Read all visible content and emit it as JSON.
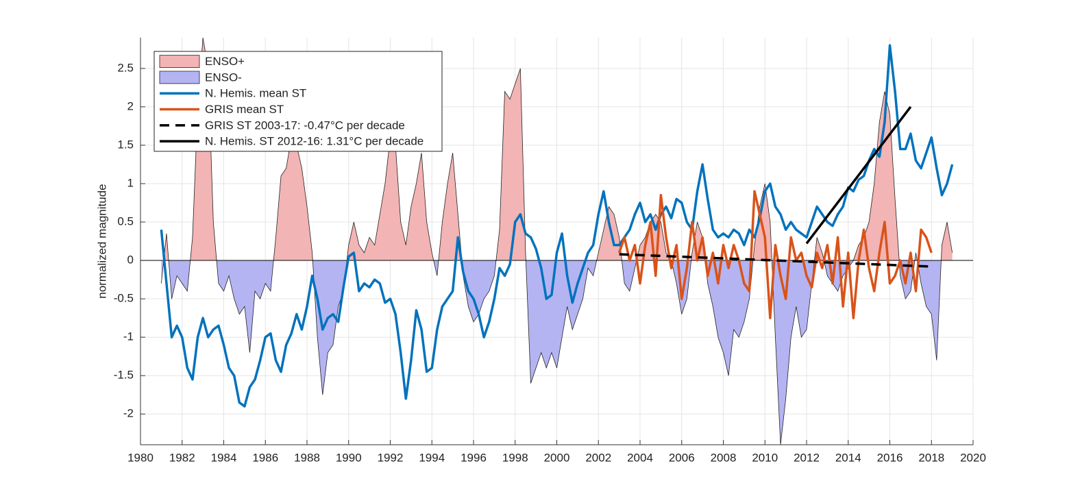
{
  "chart_data": {
    "type": "line",
    "ylabel": "normalized magnitude",
    "xlim": [
      1980,
      2020
    ],
    "xticks": [
      1980,
      1982,
      1984,
      1986,
      1988,
      1990,
      1992,
      1994,
      1996,
      1998,
      2000,
      2002,
      2004,
      2006,
      2008,
      2010,
      2012,
      2014,
      2016,
      2018,
      2020
    ],
    "ylim": [
      -2.4,
      2.9
    ],
    "yticks": [
      -2,
      -1.5,
      -1,
      -0.5,
      0,
      0.5,
      1,
      1.5,
      2,
      2.5
    ],
    "grid": true,
    "legend": "northwest",
    "x": [
      1981,
      1981.25,
      1981.5,
      1981.75,
      1982,
      1982.25,
      1982.5,
      1982.75,
      1983,
      1983.25,
      1983.5,
      1983.75,
      1984,
      1984.25,
      1984.5,
      1984.75,
      1985,
      1985.25,
      1985.5,
      1985.75,
      1986,
      1986.25,
      1986.5,
      1986.75,
      1987,
      1987.25,
      1987.5,
      1987.75,
      1988,
      1988.25,
      1988.5,
      1988.75,
      1989,
      1989.25,
      1989.5,
      1989.75,
      1990,
      1990.25,
      1990.5,
      1990.75,
      1991,
      1991.25,
      1991.5,
      1991.75,
      1992,
      1992.25,
      1992.5,
      1992.75,
      1993,
      1993.25,
      1993.5,
      1993.75,
      1994,
      1994.25,
      1994.5,
      1994.75,
      1995,
      1995.25,
      1995.5,
      1995.75,
      1996,
      1996.25,
      1996.5,
      1996.75,
      1997,
      1997.25,
      1997.5,
      1997.75,
      1998,
      1998.25,
      1998.5,
      1998.75,
      1999,
      1999.25,
      1999.5,
      1999.75,
      2000,
      2000.25,
      2000.5,
      2000.75,
      2001,
      2001.25,
      2001.5,
      2001.75,
      2002,
      2002.25,
      2002.5,
      2002.75,
      2003,
      2003.25,
      2003.5,
      2003.75,
      2004,
      2004.25,
      2004.5,
      2004.75,
      2005,
      2005.25,
      2005.5,
      2005.75,
      2006,
      2006.25,
      2006.5,
      2006.75,
      2007,
      2007.25,
      2007.5,
      2007.75,
      2008,
      2008.25,
      2008.5,
      2008.75,
      2009,
      2009.25,
      2009.5,
      2009.75,
      2010,
      2010.25,
      2010.5,
      2010.75,
      2011,
      2011.25,
      2011.5,
      2011.75,
      2012,
      2012.25,
      2012.5,
      2012.75,
      2013,
      2013.25,
      2013.5,
      2013.75,
      2014,
      2014.25,
      2014.5,
      2014.75,
      2015,
      2015.25,
      2015.5,
      2015.75,
      2016,
      2016.25,
      2016.5,
      2016.75,
      2017,
      2017.25,
      2017.5,
      2017.75,
      2018,
      2018.25,
      2018.5,
      2018.75,
      2019
    ],
    "area": {
      "pos_name": "ENSO+",
      "pos_color": "#f2b4b4",
      "neg_name": "ENSO-",
      "neg_color": "#b4b4f2",
      "values": [
        -0.3,
        0.35,
        -0.5,
        -0.2,
        -0.3,
        -0.4,
        0.3,
        2.0,
        2.9,
        2.5,
        0.5,
        -0.3,
        -0.4,
        -0.2,
        -0.5,
        -0.7,
        -0.6,
        -1.2,
        -0.4,
        -0.5,
        -0.3,
        -0.4,
        0.3,
        1.1,
        1.2,
        1.6,
        1.5,
        1.2,
        0.7,
        0.1,
        -1.0,
        -1.75,
        -1.2,
        -1.1,
        -0.6,
        -0.4,
        0.2,
        0.5,
        0.2,
        0.1,
        0.3,
        0.2,
        0.6,
        1.0,
        1.6,
        1.5,
        0.5,
        0.2,
        0.7,
        1.0,
        1.4,
        0.5,
        0.1,
        -0.2,
        0.5,
        1.0,
        1.4,
        0.6,
        -0.2,
        -0.6,
        -0.8,
        -0.7,
        -0.5,
        -0.4,
        -0.2,
        0.4,
        2.2,
        2.1,
        2.3,
        2.5,
        0.1,
        -1.6,
        -1.4,
        -1.2,
        -1.4,
        -1.2,
        -1.4,
        -1.0,
        -0.6,
        -0.9,
        -0.7,
        -0.5,
        -0.1,
        -0.2,
        0.1,
        0.4,
        0.7,
        0.6,
        0.3,
        -0.3,
        -0.4,
        -0.1,
        0.2,
        0.3,
        0.5,
        0.6,
        0.5,
        0.1,
        0.0,
        -0.3,
        -0.7,
        -0.5,
        0.1,
        0.5,
        0.3,
        -0.3,
        -0.6,
        -1.0,
        -1.2,
        -1.5,
        -0.9,
        -1.0,
        -0.8,
        -0.5,
        0.2,
        0.7,
        1.0,
        0.5,
        -1.0,
        -2.4,
        -1.8,
        -1.0,
        -0.6,
        -1.0,
        -0.9,
        -0.3,
        0.3,
        0.1,
        -0.2,
        -0.3,
        -0.4,
        -0.2,
        -0.1,
        0.0,
        0.2,
        0.3,
        0.5,
        1.0,
        1.8,
        2.2,
        1.9,
        0.8,
        -0.2,
        -0.5,
        -0.4,
        0.1,
        -0.3,
        -0.6,
        -0.7,
        -1.3,
        0.2,
        0.5,
        0.1
      ]
    },
    "series": [
      {
        "name": "N. Hemis. mean ST",
        "color": "#0072bd",
        "linestyle": "solid",
        "values": [
          0.4,
          -0.3,
          -1.0,
          -0.85,
          -1.0,
          -1.4,
          -1.55,
          -1.0,
          -0.75,
          -1.0,
          -0.9,
          -0.85,
          -1.1,
          -1.4,
          -1.5,
          -1.85,
          -1.9,
          -1.65,
          -1.55,
          -1.3,
          -1.0,
          -0.95,
          -1.3,
          -1.45,
          -1.1,
          -0.95,
          -0.7,
          -0.9,
          -0.6,
          -0.2,
          -0.5,
          -0.9,
          -0.75,
          -0.7,
          -0.8,
          -0.35,
          0.05,
          0.1,
          -0.4,
          -0.3,
          -0.35,
          -0.25,
          -0.3,
          -0.55,
          -0.5,
          -0.7,
          -1.2,
          -1.8,
          -1.3,
          -0.65,
          -0.9,
          -1.45,
          -1.4,
          -0.9,
          -0.6,
          -0.5,
          -0.4,
          0.3,
          -0.15,
          -0.4,
          -0.5,
          -0.7,
          -1.0,
          -0.8,
          -0.5,
          -0.1,
          -0.2,
          -0.05,
          0.5,
          0.6,
          0.35,
          0.3,
          0.15,
          -0.1,
          -0.5,
          -0.45,
          0.1,
          0.35,
          -0.2,
          -0.55,
          -0.3,
          -0.1,
          0.1,
          0.2,
          0.6,
          0.9,
          0.5,
          0.2,
          0.2,
          0.3,
          0.4,
          0.6,
          0.75,
          0.5,
          0.6,
          0.4,
          0.6,
          0.7,
          0.55,
          0.8,
          0.75,
          0.5,
          0.4,
          0.9,
          1.25,
          0.8,
          0.4,
          0.3,
          0.35,
          0.3,
          0.4,
          0.35,
          0.2,
          0.4,
          0.3,
          0.55,
          0.9,
          1.0,
          0.7,
          0.6,
          0.4,
          0.5,
          0.4,
          0.35,
          0.3,
          0.5,
          0.7,
          0.6,
          0.5,
          0.45,
          0.6,
          0.7,
          0.95,
          0.9,
          1.05,
          1.1,
          1.3,
          1.45,
          1.35,
          1.8,
          2.8,
          2.2,
          1.45,
          1.45,
          1.65,
          1.3,
          1.2,
          1.4,
          1.6,
          1.2,
          0.85,
          1.0,
          1.25
        ]
      },
      {
        "name": "GRIS mean ST",
        "color": "#d95319",
        "linestyle": "solid",
        "x": [
          2003,
          2003.25,
          2003.5,
          2003.75,
          2004,
          2004.25,
          2004.5,
          2004.75,
          2005,
          2005.25,
          2005.5,
          2005.75,
          2006,
          2006.25,
          2006.5,
          2006.75,
          2007,
          2007.25,
          2007.5,
          2007.75,
          2008,
          2008.25,
          2008.5,
          2008.75,
          2009,
          2009.25,
          2009.5,
          2009.75,
          2010,
          2010.25,
          2010.5,
          2010.75,
          2011,
          2011.25,
          2011.5,
          2011.75,
          2012,
          2012.25,
          2012.5,
          2012.75,
          2013,
          2013.25,
          2013.5,
          2013.75,
          2014,
          2014.25,
          2014.5,
          2014.75,
          2015,
          2015.25,
          2015.5,
          2015.75,
          2016,
          2016.25,
          2016.5,
          2016.75,
          2017,
          2017.25,
          2017.5,
          2017.75,
          2018
        ],
        "values": [
          0.1,
          0.3,
          0.0,
          0.2,
          -0.3,
          0.2,
          0.5,
          -0.2,
          0.85,
          0.3,
          -0.1,
          0.2,
          -0.5,
          -0.1,
          0.5,
          0.0,
          0.3,
          -0.2,
          0.1,
          -0.3,
          0.2,
          -0.1,
          0.2,
          0.0,
          -0.3,
          -0.4,
          0.9,
          0.6,
          0.3,
          -0.75,
          0.2,
          -0.2,
          -0.5,
          0.3,
          0.0,
          0.1,
          -0.2,
          -0.35,
          0.1,
          -0.1,
          0.2,
          -0.3,
          0.3,
          -0.6,
          0.1,
          -0.75,
          0.0,
          0.4,
          -0.1,
          -0.4,
          0.1,
          0.5,
          -0.3,
          -0.2,
          0.0,
          -0.3,
          0.1,
          -0.4,
          0.4,
          0.3,
          0.1
        ]
      },
      {
        "name": "GRIS ST 2003-17: -0.47°C per decade",
        "color": "#000000",
        "linestyle": "dashed",
        "x": [
          2003,
          2018
        ],
        "values": [
          0.08,
          -0.08
        ]
      },
      {
        "name": "N. Hemis. ST 2012-16: 1.31°C per decade",
        "color": "#000000",
        "linestyle": "solid",
        "x": [
          2012,
          2017
        ],
        "values": [
          0.22,
          2.0
        ]
      }
    ]
  }
}
